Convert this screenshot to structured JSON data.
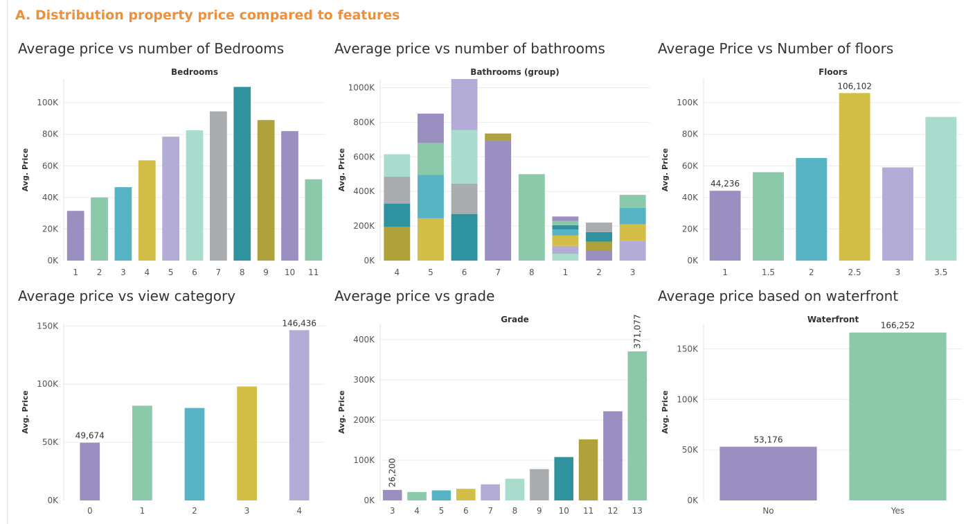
{
  "dashboard": {
    "title": "A. Distribution property price compared to features"
  },
  "chart_data": [
    {
      "id": "bedrooms",
      "title": "Average price vs number of Bedrooms",
      "type": "bar",
      "xlabel": "Bedrooms",
      "ylabel": "Avg. Price",
      "categories": [
        "1",
        "2",
        "3",
        "4",
        "5",
        "6",
        "7",
        "8",
        "9",
        "10",
        "11"
      ],
      "values": [
        31500,
        40000,
        46500,
        63500,
        78500,
        82500,
        94500,
        110000,
        89000,
        82000,
        51500
      ],
      "colors": [
        "#9a8fc0",
        "#8cc8aa",
        "#56b4c5",
        "#d3be48",
        "#b2acd6",
        "#a9dccd",
        "#a9adb0",
        "#2f939f",
        "#b0a23a",
        "#9a8fc0",
        "#8cc8aa"
      ],
      "ylim": [
        0,
        115000
      ],
      "yticks": [
        0,
        20000,
        40000,
        60000,
        80000,
        100000
      ],
      "ytick_labels": [
        "0K",
        "20K",
        "40K",
        "60K",
        "80K",
        "100K"
      ],
      "data_labels": [],
      "grid": true
    },
    {
      "id": "bathrooms",
      "title": "Average price vs number of bathrooms",
      "type": "stacked_bar",
      "xlabel": "Bathrooms (group)",
      "ylabel": "Avg. Price",
      "categories": [
        "4",
        "5",
        "6",
        "7",
        "8",
        "1",
        "2",
        "3"
      ],
      "stacks": [
        [
          {
            "value": 195000,
            "color": "#b0a23a"
          },
          {
            "value": 135000,
            "color": "#2f939f"
          },
          {
            "value": 155000,
            "color": "#a9adb0"
          },
          {
            "value": 130000,
            "color": "#a9dccd"
          }
        ],
        [
          {
            "value": 245000,
            "color": "#d3be48"
          },
          {
            "value": 250000,
            "color": "#56b4c5"
          },
          {
            "value": 185000,
            "color": "#8cc8aa"
          },
          {
            "value": 170000,
            "color": "#9a8fc0"
          }
        ],
        [
          {
            "value": 270000,
            "color": "#2f939f"
          },
          {
            "value": 175000,
            "color": "#a9adb0"
          },
          {
            "value": 310000,
            "color": "#a9dccd"
          },
          {
            "value": 295000,
            "color": "#b2acd6"
          }
        ],
        [
          {
            "value": 695000,
            "color": "#9a8fc0"
          },
          {
            "value": 40000,
            "color": "#b0a23a"
          }
        ],
        [
          {
            "value": 500000,
            "color": "#8cc8aa"
          }
        ],
        [
          {
            "value": 40000,
            "color": "#a9dccd"
          },
          {
            "value": 45000,
            "color": "#b2acd6"
          },
          {
            "value": 60000,
            "color": "#d3be48"
          },
          {
            "value": 35000,
            "color": "#56b4c5"
          },
          {
            "value": 25000,
            "color": "#2f939f"
          },
          {
            "value": 25000,
            "color": "#8cc8aa"
          },
          {
            "value": 25000,
            "color": "#9a8fc0"
          }
        ],
        [
          {
            "value": 60000,
            "color": "#9a8fc0"
          },
          {
            "value": 50000,
            "color": "#b0a23a"
          },
          {
            "value": 55000,
            "color": "#2f939f"
          },
          {
            "value": 55000,
            "color": "#a9adb0"
          }
        ],
        [
          {
            "value": 115000,
            "color": "#b2acd6"
          },
          {
            "value": 95000,
            "color": "#d3be48"
          },
          {
            "value": 95000,
            "color": "#56b4c5"
          },
          {
            "value": 75000,
            "color": "#8cc8aa"
          }
        ]
      ],
      "ylim": [
        0,
        1050000
      ],
      "yticks": [
        0,
        200000,
        400000,
        600000,
        800000,
        1000000
      ],
      "ytick_labels": [
        "0K",
        "200K",
        "400K",
        "600K",
        "800K",
        "1000K"
      ],
      "data_labels": [],
      "grid": true
    },
    {
      "id": "floors",
      "title": "Average Price vs Number of  floors",
      "type": "bar",
      "xlabel": "Floors",
      "ylabel": "Avg. Price",
      "categories": [
        "1",
        "1.5",
        "2",
        "2.5",
        "3",
        "3.5"
      ],
      "values": [
        44236,
        56000,
        65000,
        106102,
        59000,
        91000
      ],
      "colors": [
        "#9a8fc0",
        "#8cc8aa",
        "#56b4c5",
        "#d3be48",
        "#b2acd6",
        "#a9dccd"
      ],
      "ylim": [
        0,
        115000
      ],
      "yticks": [
        0,
        20000,
        40000,
        60000,
        80000,
        100000
      ],
      "ytick_labels": [
        "0K",
        "20K",
        "40K",
        "60K",
        "80K",
        "100K"
      ],
      "data_labels": [
        {
          "index": 0,
          "text": "44,236"
        },
        {
          "index": 3,
          "text": "106,102"
        }
      ],
      "grid": true
    },
    {
      "id": "view",
      "title": "Average price vs view category",
      "type": "bar",
      "xlabel": "",
      "ylabel": "Avg. Price",
      "categories": [
        "0",
        "1",
        "2",
        "3",
        "4"
      ],
      "values": [
        49674,
        81500,
        79500,
        98000,
        146436
      ],
      "colors": [
        "#9a8fc0",
        "#8cc8aa",
        "#56b4c5",
        "#d3be48",
        "#b2acd6"
      ],
      "ylim": [
        0,
        152000
      ],
      "yticks": [
        0,
        50000,
        100000,
        150000
      ],
      "ytick_labels": [
        "0K",
        "50K",
        "100K",
        "150K"
      ],
      "data_labels": [
        {
          "index": 0,
          "text": "49,674"
        },
        {
          "index": 4,
          "text": "146,436"
        }
      ],
      "grid": true
    },
    {
      "id": "grade",
      "title": "Average price vs grade",
      "type": "bar",
      "xlabel": "Grade",
      "ylabel": "Avg. Price",
      "categories": [
        "3",
        "4",
        "5",
        "6",
        "7",
        "8",
        "9",
        "10",
        "11",
        "12",
        "13"
      ],
      "values": [
        26200,
        21000,
        25000,
        29000,
        40000,
        54000,
        78000,
        108000,
        152000,
        222000,
        371077
      ],
      "colors": [
        "#9a8fc0",
        "#8cc8aa",
        "#56b4c5",
        "#d3be48",
        "#b2acd6",
        "#a9dccd",
        "#a9adb0",
        "#2f939f",
        "#b0a23a",
        "#9a8fc0",
        "#8cc8aa"
      ],
      "ylim": [
        0,
        440000
      ],
      "yticks": [
        0,
        100000,
        200000,
        300000,
        400000
      ],
      "ytick_labels": [
        "0K",
        "100K",
        "200K",
        "300K",
        "400K"
      ],
      "data_labels": [
        {
          "index": 0,
          "text": "26,200",
          "rotated": true
        },
        {
          "index": 10,
          "text": "371,077",
          "rotated": true
        }
      ],
      "grid": true
    },
    {
      "id": "waterfront",
      "title": "Average price based on waterfront",
      "type": "bar",
      "xlabel": "Waterfront",
      "ylabel": "Avg. Price",
      "categories": [
        "No",
        "Yes"
      ],
      "values": [
        53176,
        166252
      ],
      "colors": [
        "#9a8fc0",
        "#8cc8aa"
      ],
      "ylim": [
        0,
        175000
      ],
      "yticks": [
        0,
        50000,
        100000,
        150000
      ],
      "ytick_labels": [
        "0K",
        "50K",
        "100K",
        "150K"
      ],
      "data_labels": [
        {
          "index": 0,
          "text": "53,176"
        },
        {
          "index": 1,
          "text": "166,252"
        }
      ],
      "grid": true
    }
  ]
}
